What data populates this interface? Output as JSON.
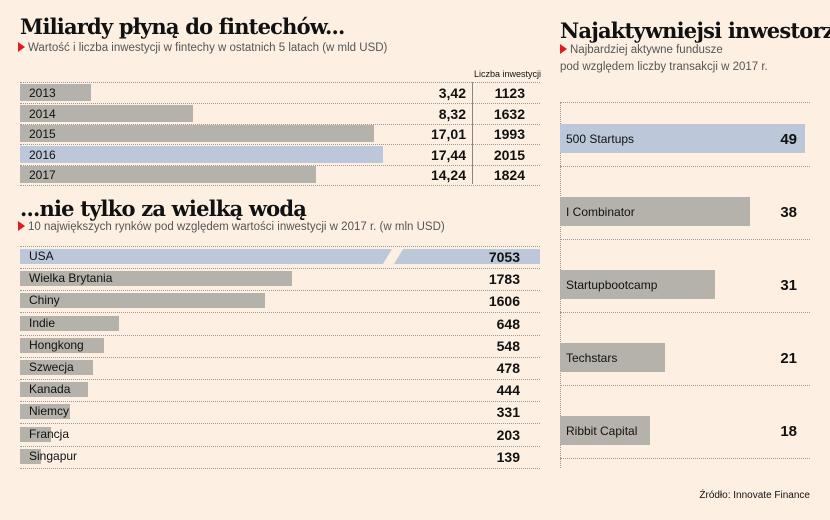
{
  "colors": {
    "background": "#fdf0e3",
    "bar": "#b4b2aa",
    "highlight": "#bcc8da",
    "accent": "#e01b22"
  },
  "chart_data": [
    {
      "type": "bar",
      "title": "Miliardy płyną do fintechów...",
      "subtitle": "Wartość i liczba inwestycji w fintechy w ostatnich 5 latach (w mld USD)",
      "count_header": "Liczba inwestycji",
      "categories": [
        "2013",
        "2014",
        "2015",
        "2016",
        "2017"
      ],
      "values": [
        3.42,
        8.32,
        17.01,
        17.44,
        14.24
      ],
      "value_labels": [
        "3,42",
        "8,32",
        "17,01",
        "17,44",
        "14,24"
      ],
      "counts": [
        "1123",
        "1632",
        "1993",
        "2015",
        "1824"
      ],
      "highlight": "2016"
    },
    {
      "type": "bar",
      "title": "...nie tylko za wielką wodą",
      "subtitle": "10 największych rynków pod względem wartości inwestycji w 2017 r. (w mln USD)",
      "categories": [
        "USA",
        "Wielka Brytania",
        "Chiny",
        "Indie",
        "Hongkong",
        "Szwecja",
        "Kanada",
        "Niemcy",
        "Francja",
        "Singapur"
      ],
      "values": [
        7053,
        1783,
        1606,
        648,
        548,
        478,
        444,
        331,
        203,
        139
      ],
      "highlight": "USA",
      "broken_axis": "USA"
    },
    {
      "type": "bar",
      "title": "Najaktywniejsi inwestorzy",
      "subtitle_line1": "Najbardziej aktywne fundusze",
      "subtitle_line2": "pod względem liczby transakcji w 2017 r.",
      "categories": [
        "500 Startups",
        "I Combinator",
        "Startupbootcamp",
        "Techstars",
        "Ribbit Capital"
      ],
      "values": [
        49,
        38,
        31,
        21,
        18
      ],
      "highlight": "500 Startups"
    }
  ],
  "source": "Źródło: Innovate Finance"
}
